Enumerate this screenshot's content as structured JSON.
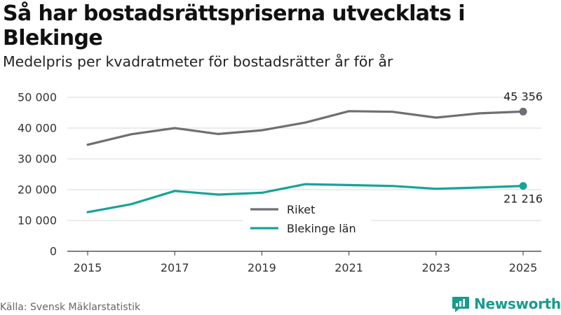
{
  "title": "Så har bostadsrättspriserna utvecklats i Blekinge",
  "subtitle": "Medelpris per kvadratmeter för bostadsrätter år för år",
  "source": "Källa: Svensk Mäklarstatistik",
  "brand": "Newsworthy",
  "colors": {
    "riket": "#6f6e73",
    "blekinge": "#17a497",
    "grid": "#d9d9d9",
    "brand": "#179c8e"
  },
  "chart_data": {
    "type": "line",
    "title": "Så har bostadsrättspriserna utvecklats i Blekinge",
    "subtitle": "Medelpris per kvadratmeter för bostadsrätter år för år",
    "xlabel": "",
    "ylabel": "",
    "x": [
      2015,
      2016,
      2017,
      2018,
      2019,
      2020,
      2021,
      2022,
      2023,
      2024,
      2025
    ],
    "xticks": [
      2015,
      2017,
      2019,
      2021,
      2023,
      2025
    ],
    "xtick_labels": [
      "2015",
      "2017",
      "2019",
      "2021",
      "2023",
      "2025"
    ],
    "ylim": [
      0,
      50000
    ],
    "yticks": [
      0,
      10000,
      20000,
      30000,
      40000,
      50000
    ],
    "ytick_labels": [
      "0",
      "10 000",
      "20 000",
      "30 000",
      "40 000",
      "50 000"
    ],
    "grid": true,
    "legend_position": "center",
    "series": [
      {
        "name": "Riket",
        "color": "#6f6e73",
        "values": [
          34600,
          38000,
          40000,
          38100,
          39300,
          41800,
          45500,
          45300,
          43400,
          44800,
          45356
        ],
        "end_label": "45 356"
      },
      {
        "name": "Blekinge län",
        "color": "#17a497",
        "values": [
          12700,
          15300,
          19600,
          18400,
          19000,
          21800,
          21500,
          21200,
          20300,
          20700,
          21216
        ],
        "end_label": "21 216"
      }
    ]
  }
}
